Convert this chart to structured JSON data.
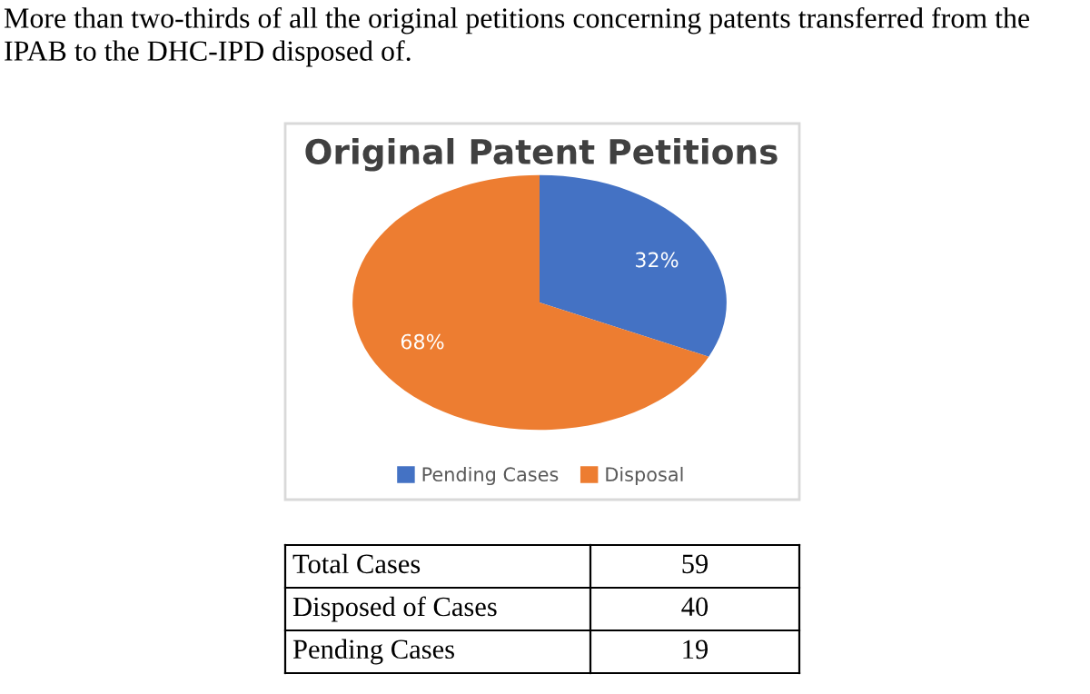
{
  "chart_data": {
    "type": "pie",
    "title": "Original Patent Petitions",
    "categories": [
      "Pending Cases",
      "Disposal"
    ],
    "values": [
      32,
      68
    ],
    "colors": [
      "#4472c4",
      "#ed7d31"
    ],
    "value_labels": [
      "32%",
      "68%"
    ],
    "legend": "bottom",
    "annotations": [
      "More than two-thirds of all the original petitions concerning patents transferred from the IPAB to the DHC-IPD disposed of.",
      "Total Cases",
      "59",
      "Disposed of Cases",
      "40",
      "Pending Cases",
      "19"
    ]
  }
}
